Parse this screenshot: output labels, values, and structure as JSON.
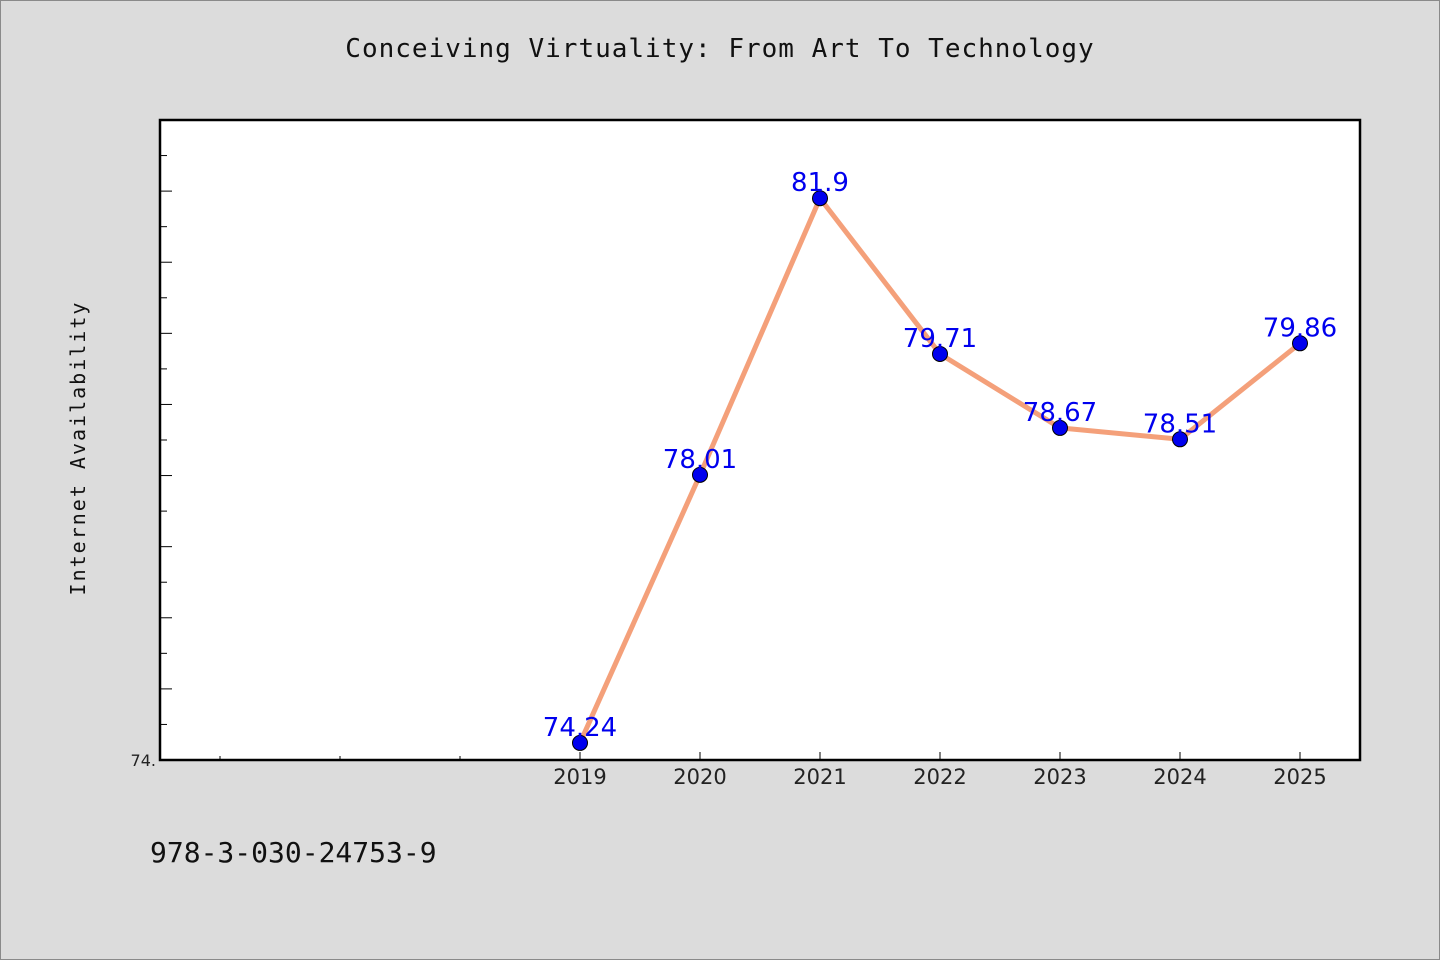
{
  "page": {
    "title": "Conceiving Virtuality: From Art To Technology",
    "footer_text": "978-3-030-24753-9"
  },
  "chart_data": {
    "type": "line",
    "title": "Conceiving Virtuality: From Art To Technology",
    "xlabel": "",
    "ylabel": "Internet Availability",
    "categories": [
      "2019",
      "2020",
      "2021",
      "2022",
      "2023",
      "2024",
      "2025"
    ],
    "series": [
      {
        "values": [
          74.24,
          78.01,
          81.9,
          79.71,
          78.67,
          78.51,
          79.86
        ],
        "labels": [
          "74.24",
          "78.01",
          "81.9",
          "79.71",
          "78.67",
          "78.51",
          "79.86"
        ]
      }
    ],
    "ylim": [
      74.0,
      83.0
    ],
    "y_tick_labels": [
      "74."
    ],
    "x_extra_slots_before": 3,
    "grid": false,
    "line_color": "#f4a07a",
    "marker_color": "#0000ee",
    "label_color": "#0000ee",
    "plot_background": "#ffffff",
    "page_background": "#dcdcdc"
  }
}
